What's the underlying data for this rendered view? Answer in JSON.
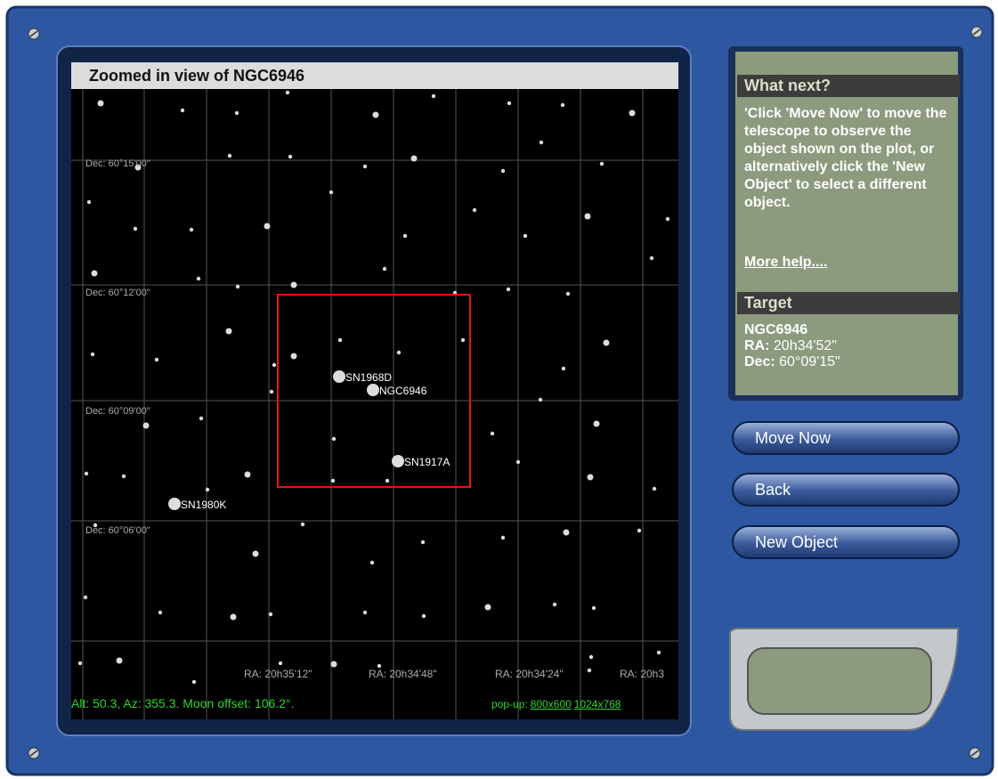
{
  "panel": {
    "title": "Zoomed in view of NGC6946",
    "dec_labels": [
      "Dec: 60°15'00\"",
      "Dec: 60°12'00\"",
      "Dec: 60°09'00\"",
      "Dec: 60°06'00\""
    ],
    "ra_labels": [
      "RA: 20h35'12\"",
      "RA: 20h34'48\"",
      "RA: 20h34'24\"",
      "RA: 20h3"
    ],
    "objects": [
      "SN1968D",
      "NGC6946",
      "SN1917A",
      "SN1980K"
    ],
    "status": "Alt: 50.3, Az: 355.3. Moon offset: 106.2°.",
    "popup": {
      "label": "pop-up:",
      "links": [
        "800x600",
        "1024x768"
      ]
    }
  },
  "sidebar": {
    "heading": "What next?",
    "text": "'Click 'Move Now' to move the telescope to observe the object shown on the plot, or alternatively click the 'New Object' to select a different object.",
    "help": "More help....",
    "target_heading": "Target",
    "target_name": "NGC6946",
    "target_ra": {
      "label": "RA:",
      "value": "20h34'52\""
    },
    "target_dec": {
      "label": "Dec:",
      "value": "60°09'15\""
    }
  },
  "buttons": [
    "Move Now",
    "Back",
    "New Object"
  ]
}
